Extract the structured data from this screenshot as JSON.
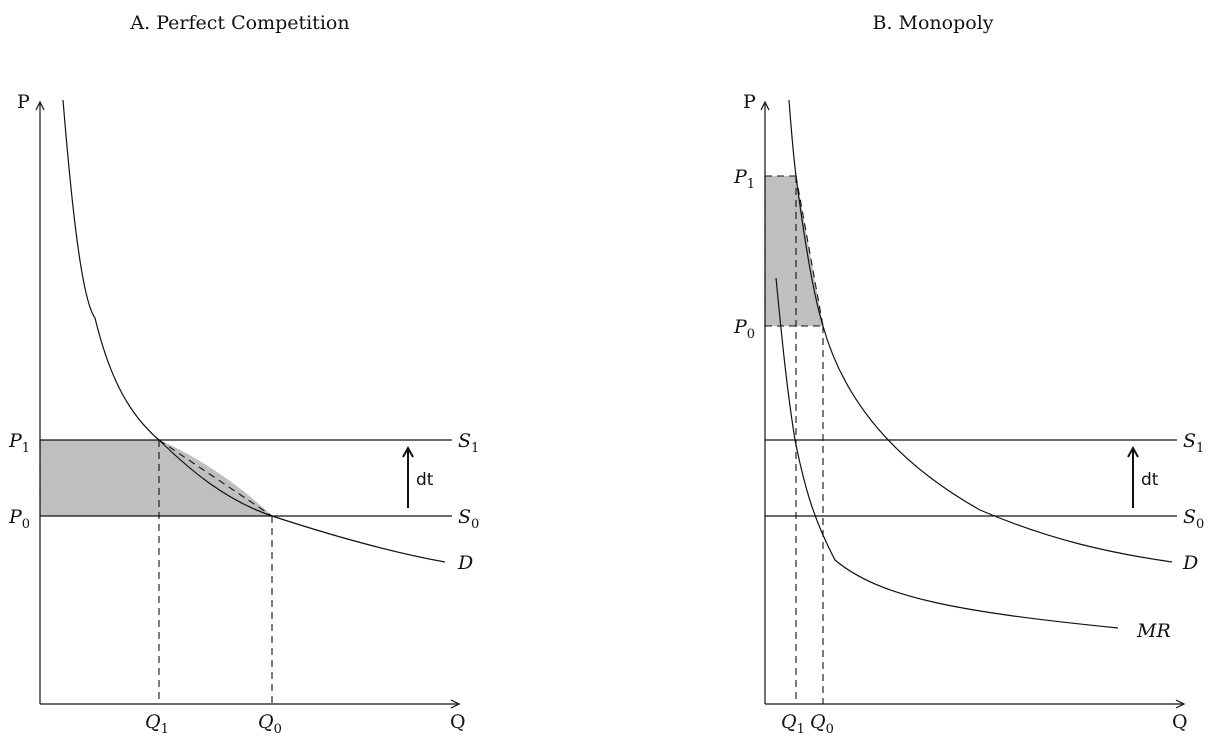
{
  "panels": [
    {
      "title": "A. Perfect Competition",
      "y_axis_label": "P",
      "x_axis_label": "Q",
      "price_labels": [
        {
          "name": "P",
          "sub": "1"
        },
        {
          "name": "P",
          "sub": "0"
        }
      ],
      "quantity_labels": [
        {
          "name": "Q",
          "sub": "1"
        },
        {
          "name": "Q",
          "sub": "0"
        }
      ],
      "curve_labels": {
        "s1": {
          "name": "S",
          "sub": "1"
        },
        "s0": {
          "name": "S",
          "sub": "0"
        },
        "d": "D"
      },
      "shift_label": "dt"
    },
    {
      "title": "B. Monopoly",
      "y_axis_label": "P",
      "x_axis_label": "Q",
      "price_labels": [
        {
          "name": "P",
          "sub": "1"
        },
        {
          "name": "P",
          "sub": "0"
        }
      ],
      "quantity_labels": [
        {
          "name": "Q",
          "sub": "1"
        },
        {
          "name": "Q",
          "sub": "0"
        }
      ],
      "curve_labels": {
        "s1": {
          "name": "S",
          "sub": "1"
        },
        "s0": {
          "name": "S",
          "sub": "0"
        },
        "d": "D",
        "mr": "MR"
      },
      "shift_label": "dt"
    }
  ]
}
